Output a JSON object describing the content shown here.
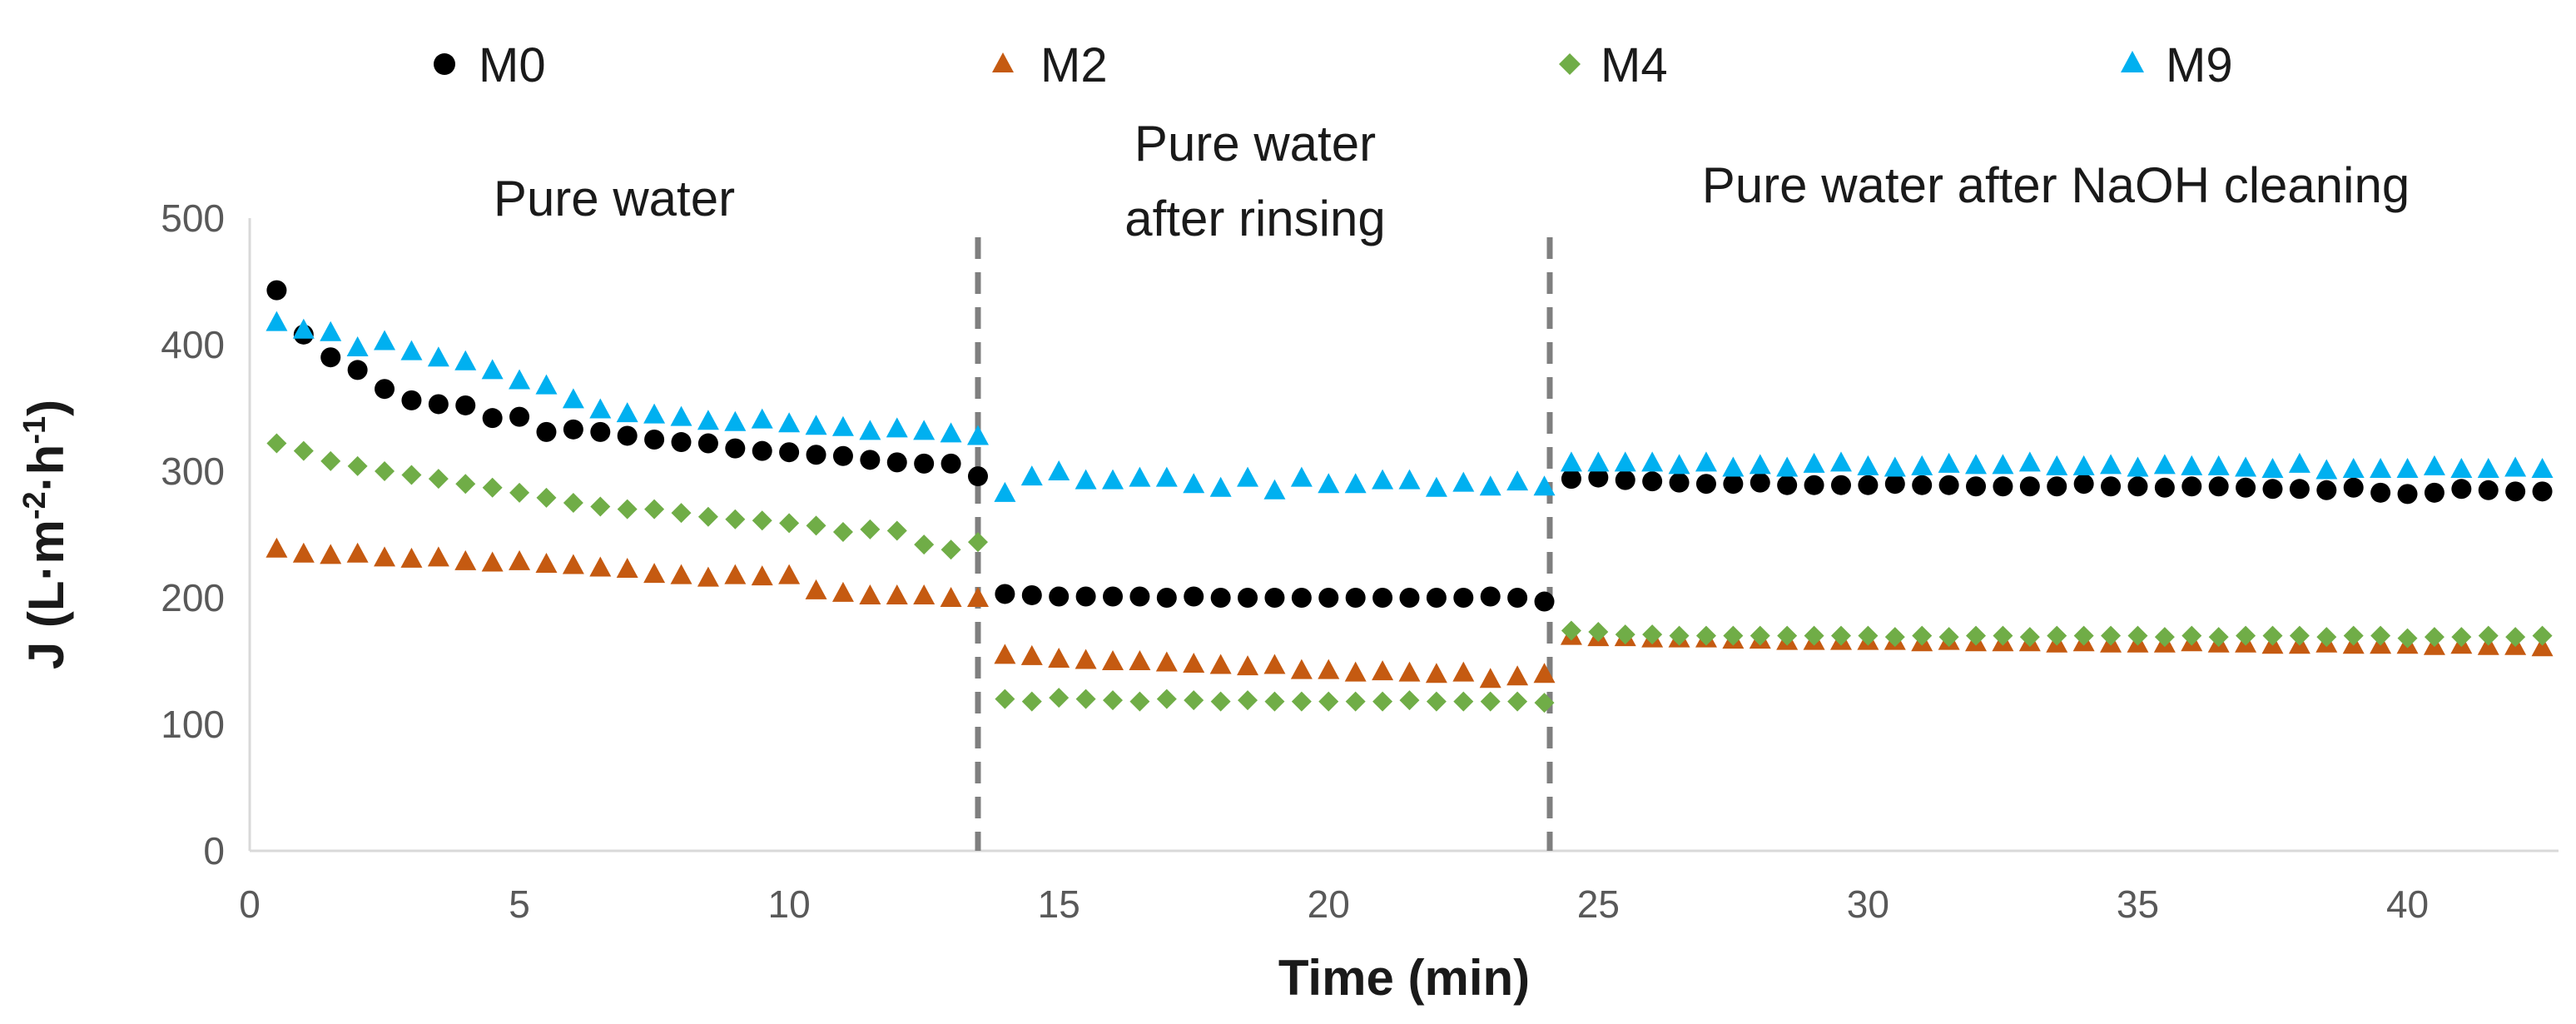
{
  "chart_data": {
    "type": "scatter",
    "title": "",
    "xlabel": "Time (min)",
    "ylabel_main": "J (L·m",
    "ylabel_sup1": "-2",
    "ylabel_mid": "·h",
    "ylabel_sup2": "-1",
    "ylabel_end": ")",
    "xlim": [
      0,
      42.8
    ],
    "ylim": [
      0,
      500
    ],
    "xticks": [
      "0",
      "5",
      "10",
      "15",
      "20",
      "25",
      "30",
      "35",
      "40"
    ],
    "yticks": [
      "0",
      "100",
      "200",
      "300",
      "400",
      "500"
    ],
    "legend_position": "top",
    "phase_dividers": [
      13.5,
      24.1
    ],
    "annotations": [
      {
        "text": "Pure water"
      },
      {
        "text": "Pure water"
      },
      {
        "text": "after rinsing"
      },
      {
        "text": "Pure water after NaOH cleaning"
      }
    ],
    "series": [
      {
        "name": "M0",
        "marker": "circle",
        "color": "#000000",
        "x": [
          0.5,
          1,
          1.5,
          2,
          2.5,
          3,
          3.5,
          4,
          4.5,
          5,
          5.5,
          6,
          6.5,
          7,
          7.5,
          8,
          8.5,
          9,
          9.5,
          10,
          10.5,
          11,
          11.5,
          12,
          12.5,
          13,
          13.5,
          14,
          14.5,
          15,
          15.5,
          16,
          16.5,
          17,
          17.5,
          18,
          18.5,
          19,
          19.5,
          20,
          20.5,
          21,
          21.5,
          22,
          22.5,
          23,
          23.5,
          24,
          24.5,
          25,
          25.5,
          26,
          26.5,
          27,
          27.5,
          28,
          28.5,
          29,
          29.5,
          30,
          30.5,
          31,
          31.5,
          32,
          32.5,
          33,
          33.5,
          34,
          34.5,
          35,
          35.5,
          36,
          36.5,
          37,
          37.5,
          38,
          38.5,
          39,
          39.5,
          40,
          40.5,
          41,
          41.5,
          42,
          42.5
        ],
        "values": [
          443,
          408,
          390,
          380,
          365,
          356,
          353,
          352,
          342,
          343,
          331,
          333,
          331,
          328,
          325,
          323,
          322,
          318,
          316,
          315,
          313,
          312,
          309,
          307,
          306,
          306,
          296,
          203,
          202,
          201,
          201,
          201,
          201,
          200,
          201,
          200,
          200,
          200,
          200,
          200,
          200,
          200,
          200,
          200,
          200,
          201,
          200,
          197,
          294,
          295,
          293,
          292,
          291,
          290,
          290,
          291,
          289,
          289,
          289,
          289,
          290,
          289,
          289,
          288,
          288,
          288,
          288,
          290,
          288,
          288,
          287,
          288,
          288,
          287,
          286,
          286,
          285,
          287,
          283,
          282,
          283,
          286,
          285,
          284,
          284
        ]
      },
      {
        "name": "M2",
        "marker": "triangle",
        "color": "#c55a11",
        "x": [
          0.5,
          1,
          1.5,
          2,
          2.5,
          3,
          3.5,
          4,
          4.5,
          5,
          5.5,
          6,
          6.5,
          7,
          7.5,
          8,
          8.5,
          9,
          9.5,
          10,
          10.5,
          11,
          11.5,
          12,
          12.5,
          13,
          13.5,
          14,
          14.5,
          15,
          15.5,
          16,
          16.5,
          17,
          17.5,
          18,
          18.5,
          19,
          19.5,
          20,
          20.5,
          21,
          21.5,
          22,
          22.5,
          23,
          23.5,
          24,
          24.5,
          25,
          25.5,
          26,
          26.5,
          27,
          27.5,
          28,
          28.5,
          29,
          29.5,
          30,
          30.5,
          31,
          31.5,
          32,
          32.5,
          33,
          33.5,
          34,
          34.5,
          35,
          35.5,
          36,
          36.5,
          37,
          37.5,
          38,
          38.5,
          39,
          39.5,
          40,
          40.5,
          41,
          41.5,
          42,
          42.5
        ],
        "values": [
          239,
          235,
          234,
          235,
          232,
          231,
          232,
          229,
          228,
          229,
          227,
          226,
          224,
          223,
          219,
          218,
          216,
          218,
          217,
          218,
          206,
          204,
          202,
          202,
          202,
          200,
          200,
          155,
          154,
          152,
          151,
          150,
          150,
          149,
          148,
          147,
          146,
          147,
          143,
          143,
          141,
          142,
          141,
          140,
          141,
          136,
          138,
          140,
          170,
          169,
          169,
          168,
          168,
          168,
          167,
          167,
          166,
          166,
          166,
          166,
          166,
          165,
          166,
          165,
          165,
          165,
          164,
          165,
          164,
          164,
          164,
          165,
          164,
          164,
          163,
          163,
          164,
          163,
          163,
          163,
          162,
          163,
          162,
          162,
          161
        ]
      },
      {
        "name": "M4",
        "marker": "diamond",
        "color": "#70ad47",
        "x": [
          0.5,
          1,
          1.5,
          2,
          2.5,
          3,
          3.5,
          4,
          4.5,
          5,
          5.5,
          6,
          6.5,
          7,
          7.5,
          8,
          8.5,
          9,
          9.5,
          10,
          10.5,
          11,
          11.5,
          12,
          12.5,
          13,
          13.5,
          14,
          14.5,
          15,
          15.5,
          16,
          16.5,
          17,
          17.5,
          18,
          18.5,
          19,
          19.5,
          20,
          20.5,
          21,
          21.5,
          22,
          22.5,
          23,
          23.5,
          24,
          24.5,
          25,
          25.5,
          26,
          26.5,
          27,
          27.5,
          28,
          28.5,
          29,
          29.5,
          30,
          30.5,
          31,
          31.5,
          32,
          32.5,
          33,
          33.5,
          34,
          34.5,
          35,
          35.5,
          36,
          36.5,
          37,
          37.5,
          38,
          38.5,
          39,
          39.5,
          40,
          40.5,
          41,
          41.5,
          42,
          42.5
        ],
        "values": [
          322,
          316,
          308,
          304,
          300,
          297,
          294,
          290,
          287,
          283,
          279,
          275,
          272,
          270,
          270,
          267,
          264,
          262,
          261,
          259,
          257,
          252,
          254,
          253,
          242,
          238,
          244,
          120,
          118,
          121,
          120,
          119,
          118,
          120,
          119,
          118,
          119,
          118,
          118,
          118,
          118,
          118,
          119,
          118,
          118,
          118,
          118,
          117,
          174,
          173,
          171,
          171,
          170,
          170,
          170,
          170,
          170,
          170,
          170,
          170,
          169,
          170,
          169,
          170,
          170,
          169,
          170,
          170,
          170,
          170,
          169,
          170,
          169,
          170,
          170,
          170,
          169,
          170,
          170,
          168,
          169,
          169,
          170,
          169,
          170
        ]
      },
      {
        "name": "M9",
        "marker": "triangle",
        "color": "#00b0f0",
        "x": [
          0.5,
          1,
          1.5,
          2,
          2.5,
          3,
          3.5,
          4,
          4.5,
          5,
          5.5,
          6,
          6.5,
          7,
          7.5,
          8,
          8.5,
          9,
          9.5,
          10,
          10.5,
          11,
          11.5,
          12,
          12.5,
          13,
          13.5,
          14,
          14.5,
          15,
          15.5,
          16,
          16.5,
          17,
          17.5,
          18,
          18.5,
          19,
          19.5,
          20,
          20.5,
          21,
          21.5,
          22,
          22.5,
          23,
          23.5,
          24,
          24.5,
          25,
          25.5,
          26,
          26.5,
          27,
          27.5,
          28,
          28.5,
          29,
          29.5,
          30,
          30.5,
          31,
          31.5,
          32,
          32.5,
          33,
          33.5,
          34,
          34.5,
          35,
          35.5,
          36,
          36.5,
          37,
          37.5,
          38,
          38.5,
          39,
          39.5,
          40,
          40.5,
          41,
          41.5,
          42,
          42.5
        ],
        "values": [
          418,
          412,
          410,
          398,
          403,
          395,
          390,
          387,
          380,
          372,
          368,
          357,
          349,
          346,
          345,
          343,
          340,
          339,
          341,
          338,
          336,
          335,
          332,
          334,
          332,
          330,
          328,
          283,
          296,
          300,
          293,
          293,
          295,
          295,
          290,
          287,
          295,
          285,
          295,
          290,
          290,
          293,
          293,
          287,
          291,
          288,
          292,
          288,
          307,
          307,
          307,
          307,
          305,
          307,
          303,
          305,
          303,
          306,
          307,
          304,
          303,
          304,
          306,
          305,
          305,
          307,
          304,
          304,
          305,
          303,
          305,
          304,
          304,
          303,
          302,
          306,
          301,
          302,
          302,
          302,
          304,
          302,
          302,
          303,
          302
        ]
      }
    ]
  }
}
